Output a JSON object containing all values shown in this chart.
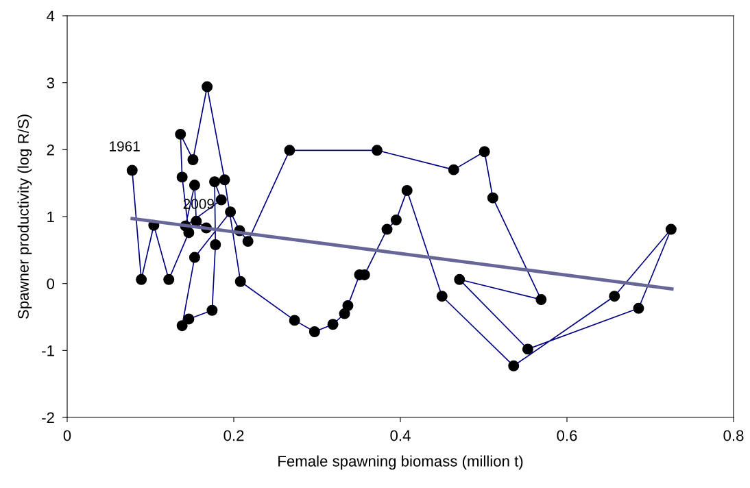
{
  "chart_data": {
    "type": "line",
    "xlabel": "Female spawning biomass (million t)",
    "ylabel": "Spawner productivity (log R/S)",
    "xlim": [
      0,
      0.8
    ],
    "xticks": [
      0,
      0.2,
      0.4,
      0.6,
      0.8
    ],
    "ylim": [
      -2,
      4
    ],
    "yticks": [
      -2,
      -1,
      0,
      1,
      2,
      3,
      4
    ],
    "grid": false,
    "legend": false,
    "series": [
      {
        "marker": "circle",
        "color": "#000080",
        "x": [
          0.078,
          0.089,
          0.104,
          0.122,
          0.146,
          0.138,
          0.136,
          0.151,
          0.168,
          0.189,
          0.208,
          0.273,
          0.297,
          0.319,
          0.333,
          0.337,
          0.351,
          0.357,
          0.384,
          0.395,
          0.408,
          0.45,
          0.536,
          0.657,
          0.725,
          0.686,
          0.553,
          0.471,
          0.569,
          0.511,
          0.501,
          0.464,
          0.372,
          0.267,
          0.217,
          0.207,
          0.196,
          0.153,
          0.138,
          0.146,
          0.174,
          0.178,
          0.177,
          0.185,
          0.142,
          0.153,
          0.155,
          0.167
        ],
        "values": [
          1.69,
          0.06,
          0.87,
          0.06,
          0.76,
          1.59,
          2.23,
          1.85,
          2.94,
          1.55,
          0.03,
          -0.55,
          -0.72,
          -0.61,
          -0.45,
          -0.33,
          0.13,
          0.13,
          0.81,
          0.95,
          1.39,
          -0.19,
          -1.23,
          -0.19,
          0.81,
          -0.37,
          -0.98,
          0.06,
          -0.24,
          1.28,
          1.97,
          1.7,
          1.99,
          1.99,
          0.63,
          0.79,
          1.07,
          0.39,
          -0.63,
          -0.53,
          -0.4,
          0.58,
          1.52,
          1.25,
          0.86,
          1.47,
          0.93,
          0.83
        ]
      },
      {
        "type": "line",
        "marker": "none",
        "color": "#666699",
        "x": [
          0.078,
          0.726
        ],
        "values": [
          0.97,
          -0.08
        ]
      }
    ],
    "annotations": [
      {
        "text": "1961",
        "x": 0.078,
        "y": 1.69
      },
      {
        "text": "2009",
        "x": 0.167,
        "y": 0.83
      }
    ]
  }
}
